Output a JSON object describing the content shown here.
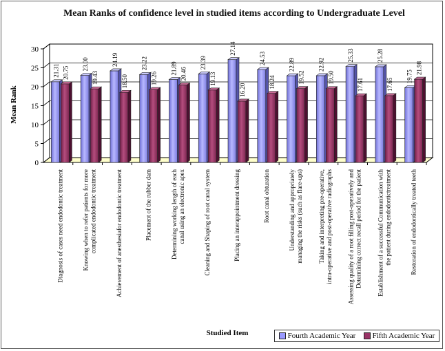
{
  "chart_data": {
    "type": "bar",
    "title": "Mean Ranks of confidence level in studied items according to Undergraduate Level",
    "xlabel": "Studied Item",
    "ylabel": "Mean Rank",
    "ylim": [
      0,
      30
    ],
    "yticks": [
      0,
      5,
      10,
      15,
      20,
      25,
      30
    ],
    "grid": true,
    "legend_position": "bottom-right",
    "categories": [
      "Diagnosis of cases need endodontic treatment",
      "Knowing when to refer patients for more complicated endodontic treatment",
      "Achievement of anesthesiafor endodontic treatment",
      "Placement of the rubber dam",
      "Determining working length of each canal using an electronic apex",
      "Cleaning and Shaping of root canal system",
      "Placing an interappointment dressing",
      "Root canal obturation",
      "Understanding and appropriately managing the risks (such as flare-ups)",
      "Taking and interpreting pre-operative, intra-operative and post-operative radiographs",
      "Assessing quality of a root filling post-operatively and Determining correct recall period for the patient",
      "Establishment of a successful Communication with the patient during endodontictreatment",
      "Restoration of endodontically treated teeth"
    ],
    "series": [
      {
        "name": "Fourth Academic Year",
        "color": "#9999ff",
        "values": [
          21.31,
          23.0,
          24.19,
          23.22,
          21.89,
          23.39,
          27.14,
          24.53,
          22.89,
          22.92,
          25.33,
          25.28,
          19.75
        ],
        "labels": [
          "21.31",
          "23.00",
          "24.19",
          "23.22",
          "21.89",
          "23.39",
          "27.14",
          "24.53",
          "22.89",
          "22.92",
          "25.33",
          "25.28",
          "19.75"
        ]
      },
      {
        "name": "Fifth Academic Year",
        "color": "#993366",
        "values": [
          20.75,
          19.43,
          18.5,
          19.26,
          20.46,
          19.13,
          16.2,
          18.24,
          19.52,
          19.5,
          17.61,
          17.65,
          21.98
        ],
        "labels": [
          "20.75",
          "19.43",
          "18.50",
          "19.26",
          "20.46",
          "19.13",
          "16.20",
          "18.24",
          "19.52",
          "19.50",
          "17.61",
          "17.65",
          "21.98"
        ]
      }
    ]
  }
}
